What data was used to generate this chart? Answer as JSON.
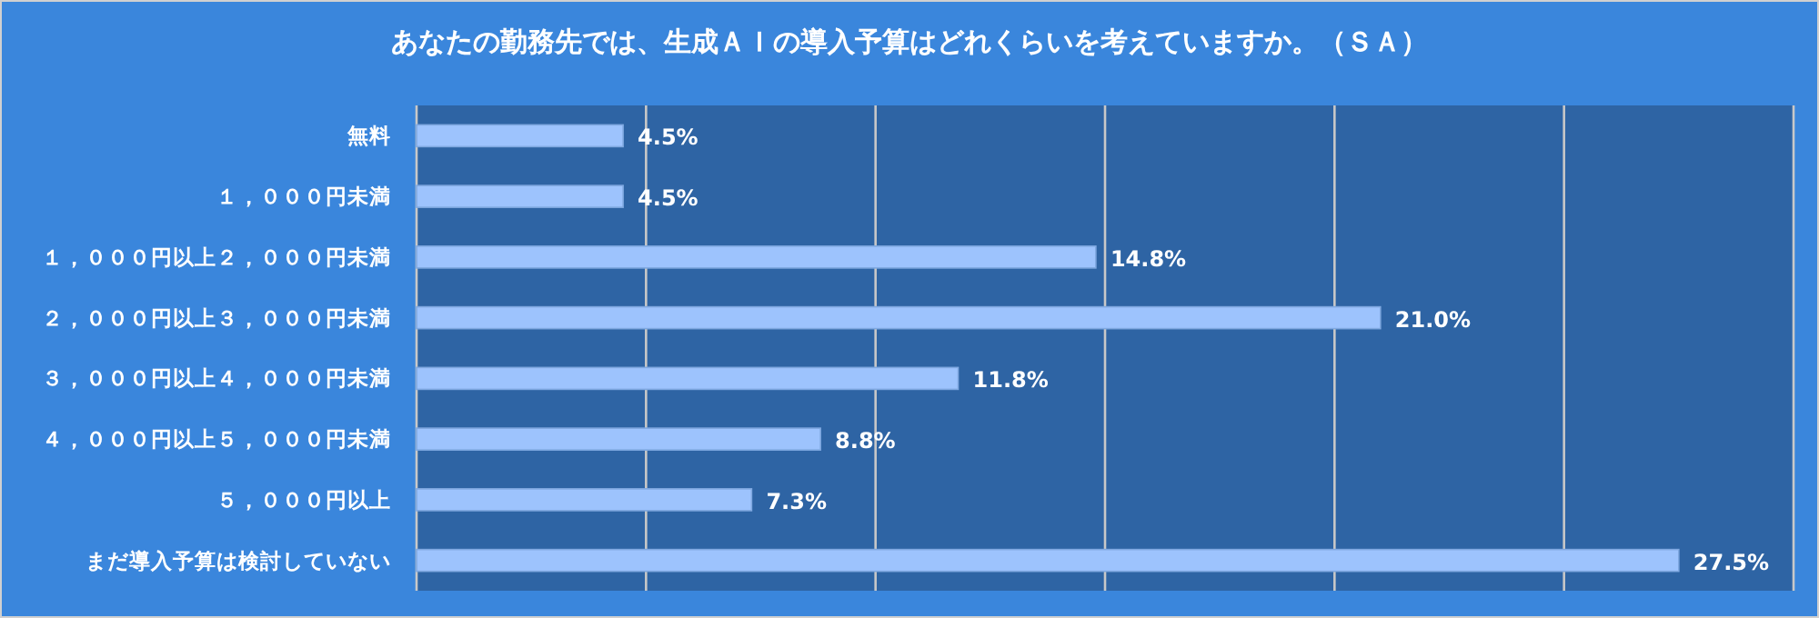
{
  "chart_data": {
    "type": "bar",
    "orientation": "horizontal",
    "title": "あなたの勤務先では、生成ＡＩの導入予算はどれくらいを考えていますか。（ＳＡ）",
    "categories": [
      "無料",
      "１，０００円未満",
      "１，０００円以上２，０００円未満",
      "２，０００円以上３，０００円未満",
      "３，０００円以上４，０００円未満",
      "４，０００円以上５，０００円未満",
      "５，０００円以上",
      "まだ導入予算は検討していない"
    ],
    "values": [
      4.5,
      4.5,
      14.8,
      21.0,
      11.8,
      8.8,
      7.3,
      27.5
    ],
    "value_labels": [
      "4.5%",
      "4.5%",
      "14.8%",
      "21.0%",
      "11.8%",
      "8.8%",
      "7.3%",
      "27.5%"
    ],
    "color": "#9dc3fd",
    "xlim": [
      0,
      30
    ],
    "xticks": [
      {
        "value": 0,
        "label": null
      },
      {
        "value": 5,
        "label": null
      },
      {
        "value": 10,
        "label": null
      },
      {
        "value": 15,
        "label": null
      },
      {
        "value": 20,
        "label": null
      },
      {
        "value": 25,
        "label": null
      },
      {
        "value": 30,
        "label": null
      }
    ],
    "grid": "x",
    "tick_labels": "y"
  }
}
